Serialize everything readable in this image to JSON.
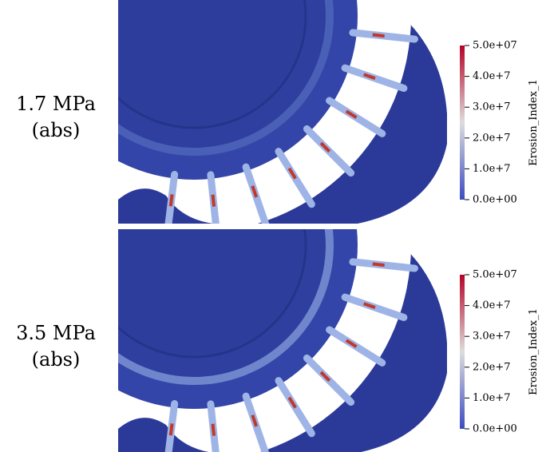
{
  "panels": [
    {
      "label": [
        "1.7 MPa",
        "(abs)"
      ],
      "colorbar": {
        "title": "Erosion_Index_1",
        "ticks": [
          "5.0e+07",
          "4.0e+7",
          "3.0e+7",
          "2.0e+7",
          "1.0e+7",
          "0.0e+00"
        ]
      }
    },
    {
      "label": [
        "3.5 MPa",
        "(abs)"
      ],
      "colorbar": {
        "title": "Erosion_Index_1",
        "ticks": [
          "5.0e+07",
          "4.0e+7",
          "3.0e+7",
          "2.0e+7",
          "1.0e+7",
          "0.0e+00"
        ]
      }
    }
  ]
}
